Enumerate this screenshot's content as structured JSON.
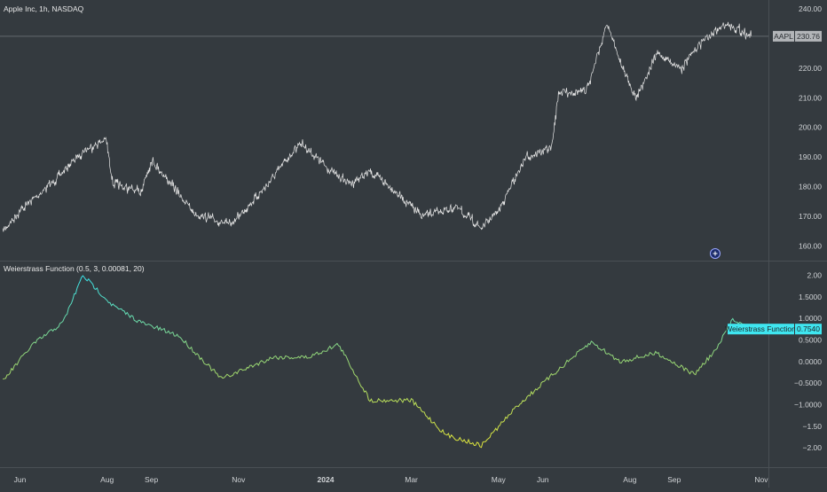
{
  "colors": {
    "background": "#343a3f",
    "price_line": "#e6e6e6",
    "indicator_gradient_low": "#39e3ea",
    "indicator_gradient_high": "#e0e63a",
    "price_tag_bg": "#b2b5b8",
    "indicator_tag_bg": "#3fe6f0",
    "separator": "#4a5055"
  },
  "chart_data": [
    {
      "type": "line",
      "title": "Apple Inc, 1h, NASDAQ",
      "symbol": "AAPL",
      "last_value": "230.76",
      "ylim": [
        155,
        243
      ],
      "yticks": [
        "240.00",
        "230.00",
        "220.00",
        "210.00",
        "200.00",
        "190.00",
        "180.00",
        "170.00",
        "160.00"
      ],
      "x": [
        "2023-05-20",
        "2023-06-01",
        "2023-06-25",
        "2023-07-15",
        "2023-07-31",
        "2023-08-05",
        "2023-08-24",
        "2023-09-01",
        "2023-10-01",
        "2023-10-26",
        "2023-11-20",
        "2023-12-14",
        "2024-01-05",
        "2024-01-18",
        "2024-02-01",
        "2024-02-15",
        "2024-03-08",
        "2024-04-01",
        "2024-04-19",
        "2024-05-01",
        "2024-05-20",
        "2024-06-07",
        "2024-06-12",
        "2024-07-01",
        "2024-07-16",
        "2024-07-25",
        "2024-08-05",
        "2024-08-20",
        "2024-09-06",
        "2024-09-20",
        "2024-10-08",
        "2024-10-20",
        "2024-10-25"
      ],
      "values": [
        165,
        172,
        182,
        192,
        196,
        181,
        178,
        189,
        171,
        167,
        180,
        195,
        185,
        181,
        185,
        180,
        170,
        173,
        166,
        172,
        190,
        193,
        212,
        212,
        235,
        222,
        210,
        225,
        220,
        229,
        235,
        232,
        230.76
      ]
    },
    {
      "type": "line",
      "title": "Weierstrass Function (0.5, 3, 0.00081, 20)",
      "series_name": "Weierstrass Function",
      "last_value": "0.7540",
      "ylim": [
        -2.45,
        2.3
      ],
      "yticks": [
        "2.00",
        "1.5000",
        "1.0000",
        "0.5000",
        "0.0000",
        "−0.5000",
        "−1.0000",
        "−1.50",
        "−2.00"
      ],
      "x": [
        "2023-05-20",
        "2023-06-10",
        "2023-07-01",
        "2023-07-15",
        "2023-08-05",
        "2023-08-25",
        "2023-09-20",
        "2023-10-20",
        "2023-11-25",
        "2023-12-20",
        "2024-01-10",
        "2024-02-01",
        "2024-03-01",
        "2024-03-25",
        "2024-04-19",
        "2024-05-15",
        "2024-06-15",
        "2024-07-05",
        "2024-07-25",
        "2024-08-20",
        "2024-09-15",
        "2024-10-01",
        "2024-10-12",
        "2024-10-24"
      ],
      "values": [
        -0.45,
        0.4,
        0.9,
        2.0,
        1.3,
        0.9,
        0.6,
        -0.4,
        0.1,
        0.1,
        0.4,
        -0.9,
        -0.9,
        -1.7,
        -1.95,
        -1.0,
        -0.1,
        0.45,
        0.0,
        0.2,
        -0.3,
        0.3,
        1.0,
        0.754
      ]
    }
  ],
  "x_axis": {
    "labels": [
      {
        "text": "Jun",
        "date": "2023-06-01",
        "bold": false
      },
      {
        "text": "Aug",
        "date": "2023-08-01",
        "bold": false
      },
      {
        "text": "Sep",
        "date": "2023-09-01",
        "bold": false
      },
      {
        "text": "Nov",
        "date": "2023-11-01",
        "bold": false
      },
      {
        "text": "2024",
        "date": "2024-01-01",
        "bold": true
      },
      {
        "text": "Mar",
        "date": "2024-03-01",
        "bold": false
      },
      {
        "text": "May",
        "date": "2024-05-01",
        "bold": false
      },
      {
        "text": "Jun",
        "date": "2024-06-01",
        "bold": false
      },
      {
        "text": "Aug",
        "date": "2024-08-01",
        "bold": false
      },
      {
        "text": "Sep",
        "date": "2024-09-01",
        "bold": false
      },
      {
        "text": "Nov",
        "date": "2024-11-01",
        "bold": false
      }
    ]
  }
}
